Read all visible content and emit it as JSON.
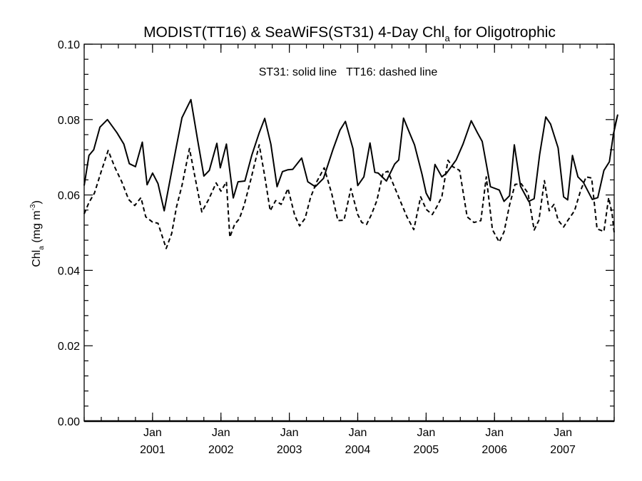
{
  "chart_data": {
    "type": "line",
    "title": {
      "main": "MODIST(TT16) & SeaWiFS(ST31) 4-Day Chl",
      "sub": "a",
      "tail": " for Oligotrophic"
    },
    "annotation": "ST31: solid line   TT16: dashed line",
    "ylabel": {
      "pre": "Chl",
      "sub": "a",
      "mid": " (mg m",
      "sup": "-3",
      "post": ")"
    },
    "ylim": [
      0.0,
      0.1
    ],
    "xlim": [
      2000.0,
      2007.75
    ],
    "yticks": [
      {
        "value": 0.0,
        "label": "0.00"
      },
      {
        "value": 0.02,
        "label": "0.02"
      },
      {
        "value": 0.04,
        "label": "0.04"
      },
      {
        "value": 0.06,
        "label": "0.06"
      },
      {
        "value": 0.08,
        "label": "0.08"
      },
      {
        "value": 0.1,
        "label": "0.10"
      }
    ],
    "xticks": [
      {
        "value": 2001,
        "month": "Jan",
        "year": "2001"
      },
      {
        "value": 2002,
        "month": "Jan",
        "year": "2002"
      },
      {
        "value": 2003,
        "month": "Jan",
        "year": "2003"
      },
      {
        "value": 2004,
        "month": "Jan",
        "year": "2004"
      },
      {
        "value": 2005,
        "month": "Jan",
        "year": "2005"
      },
      {
        "value": 2006,
        "month": "Jan",
        "year": "2006"
      },
      {
        "value": 2007,
        "month": "Jan",
        "year": "2007"
      }
    ],
    "grid": false,
    "series": [
      {
        "name": "ST31",
        "style": "solid",
        "x": [
          2000.0,
          2000.07,
          2000.14,
          2000.23,
          2000.34,
          2000.48,
          2000.58,
          2000.66,
          2000.75,
          2000.85,
          2000.92,
          2001.0,
          2001.08,
          2001.17,
          2001.24,
          2001.35,
          2001.43,
          2001.56,
          2001.66,
          2001.75,
          2001.83,
          2001.94,
          2001.99,
          2002.08,
          2002.18,
          2002.25,
          2002.35,
          2002.45,
          2002.56,
          2002.64,
          2002.73,
          2002.82,
          2002.9,
          2002.98,
          2003.05,
          2003.18,
          2003.27,
          2003.38,
          2003.5,
          2003.64,
          2003.74,
          2003.82,
          2003.93,
          2004.0,
          2004.09,
          2004.18,
          2004.25,
          2004.3,
          2004.42,
          2004.54,
          2004.6,
          2004.67,
          2004.75,
          2004.83,
          2004.94,
          2005.0,
          2005.06,
          2005.13,
          2005.23,
          2005.3,
          2005.44,
          2005.54,
          2005.66,
          2005.75,
          2005.82,
          2005.94,
          2006.07,
          2006.14,
          2006.22,
          2006.29,
          2006.38,
          2006.5,
          2006.58,
          2006.66,
          2006.75,
          2006.82,
          2006.93,
          2007.01,
          2007.07,
          2007.14,
          2007.22,
          2007.3,
          2007.43,
          2007.51,
          2007.6,
          2007.68,
          2007.74,
          2007.8,
          2007.75
        ],
        "y": [
          0.0625,
          0.0705,
          0.072,
          0.078,
          0.08,
          0.0765,
          0.0735,
          0.0683,
          0.0675,
          0.074,
          0.0627,
          0.0658,
          0.063,
          0.0558,
          0.0625,
          0.073,
          0.0805,
          0.0853,
          0.0745,
          0.065,
          0.0665,
          0.0737,
          0.0672,
          0.0735,
          0.0592,
          0.0635,
          0.0637,
          0.0705,
          0.0765,
          0.0803,
          0.0735,
          0.0622,
          0.0662,
          0.0667,
          0.0668,
          0.0698,
          0.0635,
          0.0622,
          0.0644,
          0.0722,
          0.0772,
          0.0795,
          0.0723,
          0.0625,
          0.0648,
          0.0738,
          0.066,
          0.0658,
          0.0637,
          0.0682,
          0.0693,
          0.0804,
          0.0768,
          0.0733,
          0.0655,
          0.0605,
          0.0585,
          0.0681,
          0.0648,
          0.0658,
          0.0693,
          0.0735,
          0.0797,
          0.0765,
          0.0742,
          0.0622,
          0.0613,
          0.0583,
          0.0598,
          0.0733,
          0.0623,
          0.0583,
          0.059,
          0.0707,
          0.0807,
          0.0788,
          0.0725,
          0.0595,
          0.0587,
          0.0705,
          0.0648,
          0.0633,
          0.0588,
          0.0593,
          0.0665,
          0.0688,
          0.0762,
          0.0812,
          0.0775
        ]
      },
      {
        "name": "TT16",
        "style": "dashed",
        "x": [
          2000.0,
          2000.07,
          2000.15,
          2000.25,
          2000.35,
          2000.45,
          2000.55,
          2000.65,
          2000.74,
          2000.83,
          2000.9,
          2001.0,
          2001.08,
          2001.2,
          2001.28,
          2001.35,
          2001.43,
          2001.54,
          2001.62,
          2001.72,
          2001.82,
          2001.93,
          2002.0,
          2002.08,
          2002.13,
          2002.2,
          2002.27,
          2002.34,
          2002.44,
          2002.56,
          2002.64,
          2002.72,
          2002.8,
          2002.88,
          2002.98,
          2003.08,
          2003.15,
          2003.23,
          2003.31,
          2003.4,
          2003.51,
          2003.62,
          2003.71,
          2003.8,
          2003.9,
          2004.0,
          2004.06,
          2004.13,
          2004.2,
          2004.28,
          2004.37,
          2004.44,
          2004.51,
          2004.62,
          2004.72,
          2004.82,
          2004.92,
          2005.0,
          2005.09,
          2005.16,
          2005.23,
          2005.32,
          2005.39,
          2005.49,
          2005.6,
          2005.7,
          2005.8,
          2005.88,
          2005.97,
          2006.07,
          2006.14,
          2006.22,
          2006.3,
          2006.39,
          2006.49,
          2006.58,
          2006.65,
          2006.73,
          2006.8,
          2006.87,
          2006.93,
          2007.01,
          2007.07,
          2007.17,
          2007.26,
          2007.34,
          2007.42,
          2007.5,
          2007.6,
          2007.67,
          2007.72,
          2007.75
        ],
        "y": [
          0.055,
          0.058,
          0.0605,
          0.0663,
          0.0718,
          0.0673,
          0.0635,
          0.0588,
          0.0572,
          0.0593,
          0.0542,
          0.0528,
          0.0525,
          0.0458,
          0.0498,
          0.0568,
          0.0625,
          0.0723,
          0.0648,
          0.0555,
          0.0588,
          0.0632,
          0.061,
          0.0635,
          0.0488,
          0.0522,
          0.0537,
          0.0573,
          0.0643,
          0.0733,
          0.065,
          0.0558,
          0.0585,
          0.0575,
          0.0617,
          0.0545,
          0.0518,
          0.0538,
          0.0593,
          0.0635,
          0.0672,
          0.0603,
          0.0532,
          0.0533,
          0.0617,
          0.0548,
          0.0527,
          0.0522,
          0.0548,
          0.0585,
          0.0658,
          0.0663,
          0.0633,
          0.0585,
          0.0542,
          0.0508,
          0.0595,
          0.0562,
          0.0548,
          0.057,
          0.0595,
          0.0692,
          0.0675,
          0.0665,
          0.0542,
          0.0527,
          0.0532,
          0.0648,
          0.0508,
          0.0475,
          0.0502,
          0.0573,
          0.0628,
          0.063,
          0.0605,
          0.0507,
          0.0533,
          0.0638,
          0.0558,
          0.0575,
          0.0533,
          0.0515,
          0.0532,
          0.0558,
          0.0612,
          0.0648,
          0.0645,
          0.051,
          0.0503,
          0.0593,
          0.055,
          0.05
        ]
      }
    ]
  }
}
